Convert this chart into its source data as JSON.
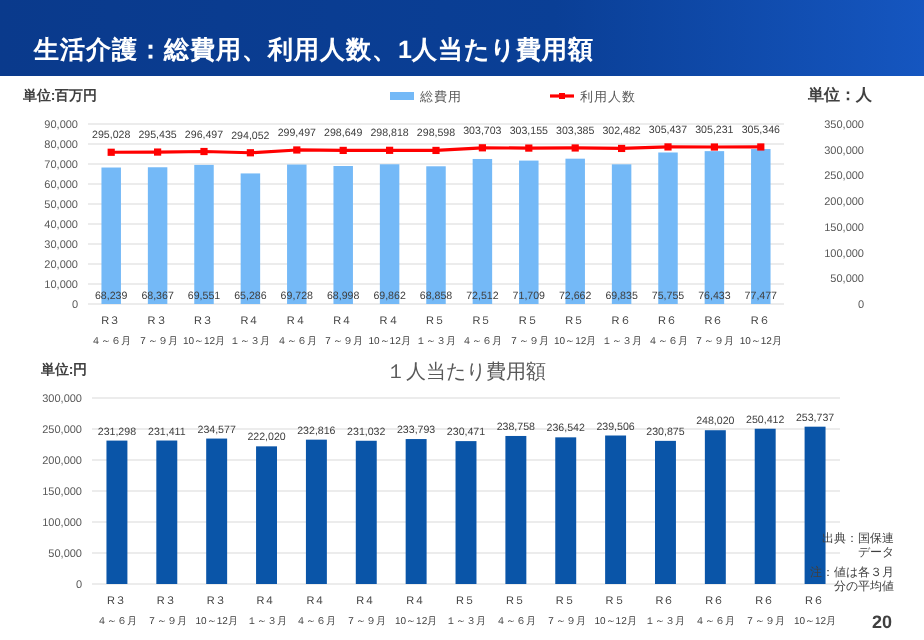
{
  "chart_data": [
    {
      "type": "bar",
      "title": "生活介護：総費用、利用人数、1人当たり費用額",
      "ylabel": "単位:百万円",
      "y2label": "単位：人",
      "categories": [
        "R３４～６月",
        "R３７～９月",
        "R３10～12月",
        "R４１～３月",
        "R４４～６月",
        "R４７～９月",
        "R４10～12月",
        "R５１～３月",
        "R５４～６月",
        "R５７～９月",
        "R５10～12月",
        "R６１～３月",
        "R６４～６月",
        "R６７～９月",
        "R６10～12月"
      ],
      "series": [
        {
          "name": "総費用",
          "type": "bar",
          "color": "#74b9f7",
          "values": [
            68239,
            68367,
            69551,
            65286,
            69728,
            68998,
            69862,
            68858,
            72512,
            71709,
            72662,
            69835,
            75755,
            76433,
            77477
          ],
          "value_labels": [
            "68,239",
            "68,367",
            "69,551",
            "65,286",
            "69,728",
            "68,998",
            "69,862",
            "68,858",
            "72,512",
            "71,709",
            "72,662",
            "69,835",
            "75,755",
            "76,433",
            "77,477"
          ]
        },
        {
          "name": "利用人数",
          "type": "line",
          "axis": "y2",
          "color": "#ff0000",
          "marker": "square",
          "values": [
            295028,
            295435,
            296497,
            294052,
            299497,
            298649,
            298818,
            298598,
            303703,
            303155,
            303385,
            302482,
            305437,
            305231,
            305346
          ],
          "value_labels": [
            "295,028",
            "295,435",
            "296,497",
            "294,052",
            "299,497",
            "298,649",
            "298,818",
            "298,598",
            "303,703",
            "303,155",
            "303,385",
            "302,482",
            "305,437",
            "305,231",
            "305,346"
          ]
        }
      ],
      "ylim": [
        0,
        90000
      ],
      "yticks": [
        0,
        {
          "value": 10000,
          "label": "10,000"
        },
        {
          "value": 20000,
          "label": "20,000"
        },
        {
          "value": 30000,
          "label": "30,000"
        },
        {
          "value": 40000,
          "label": "40,000"
        },
        {
          "value": 50000,
          "label": "50,000"
        },
        {
          "value": 60000,
          "label": "60,000"
        },
        {
          "value": 70000,
          "label": "70,000"
        },
        {
          "value": 80000,
          "label": "80,000"
        },
        {
          "value": 90000,
          "label": "90,000"
        }
      ],
      "y2lim": [
        0,
        350000
      ],
      "y2ticks": [
        0,
        {
          "value": 50000,
          "label": "50,000"
        },
        {
          "value": 100000,
          "label": "100,000"
        },
        {
          "value": 150000,
          "label": "150,000"
        },
        {
          "value": 200000,
          "label": "200,000"
        },
        {
          "value": 250000,
          "label": "250,000"
        },
        {
          "value": 300000,
          "label": "300,000"
        },
        {
          "value": 350000,
          "label": "350,000"
        }
      ],
      "grid": "y",
      "legend": "top"
    },
    {
      "type": "bar",
      "title": "１人当たり費用額",
      "ylabel": "単位:円",
      "categories": [
        "R３４～６月",
        "R３７～９月",
        "R３10～12月",
        "R４１～３月",
        "R４４～６月",
        "R４７～９月",
        "R４10～12月",
        "R５１～３月",
        "R５４～６月",
        "R５７～９月",
        "R５10～12月",
        "R６１～３月",
        "R６４～６月",
        "R６７～９月",
        "R６10～12月"
      ],
      "color": "#0a55a8",
      "values": [
        231298,
        231411,
        234577,
        222020,
        232816,
        231032,
        233793,
        230471,
        238758,
        236542,
        239506,
        230875,
        248020,
        250412,
        253737
      ],
      "value_labels": [
        "231,298",
        "231,411",
        "234,577",
        "222,020",
        "232,816",
        "231,032",
        "233,793",
        "230,471",
        "238,758",
        "236,542",
        "239,506",
        "230,875",
        "248,020",
        "250,412",
        "253,737"
      ],
      "ylim": [
        0,
        300000
      ],
      "yticks": [
        0,
        {
          "value": 50000,
          "label": "50,000"
        },
        {
          "value": 100000,
          "label": "100,000"
        },
        {
          "value": 150000,
          "label": "150,000"
        },
        {
          "value": 200000,
          "label": "200,000"
        },
        {
          "value": 250000,
          "label": "250,000"
        },
        {
          "value": 300000,
          "label": "300,000"
        }
      ],
      "grid": "y",
      "annotations": [
        "出典：国保連データ",
        "注：値は各３月分の平均値",
        "20"
      ]
    }
  ]
}
